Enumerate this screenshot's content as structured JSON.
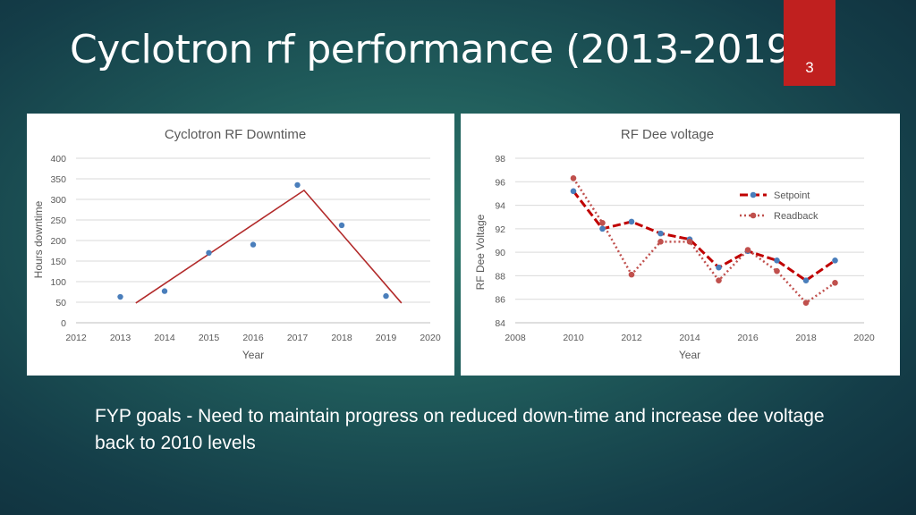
{
  "slide": {
    "title": "Cyclotron rf performance (2013-2019)",
    "page_number": "3",
    "footer_text": "FYP goals - Need to maintain progress on reduced down-time and increase dee voltage back to 2010 levels"
  },
  "colors": {
    "accent_tab": "#c0201f",
    "point_blue": "#4a7ebb",
    "trend_red": "#b22a2a",
    "setpoint": "#c00000",
    "readback": "#c0504d"
  },
  "chart_data": [
    {
      "type": "scatter",
      "title": "Cyclotron RF Downtime",
      "xlabel": "Year",
      "ylabel": "Hours downtime",
      "xlim": [
        2012,
        2020
      ],
      "ylim": [
        0,
        400
      ],
      "xticks": [
        2012,
        2013,
        2014,
        2015,
        2016,
        2017,
        2018,
        2019,
        2020
      ],
      "yticks": [
        0,
        50,
        100,
        150,
        200,
        250,
        300,
        350,
        400
      ],
      "grid": true,
      "legend": "none",
      "points": [
        {
          "x": 2013,
          "y": 63
        },
        {
          "x": 2014,
          "y": 77
        },
        {
          "x": 2015,
          "y": 170
        },
        {
          "x": 2016,
          "y": 190
        },
        {
          "x": 2017,
          "y": 335
        },
        {
          "x": 2018,
          "y": 237
        },
        {
          "x": 2019,
          "y": 65
        }
      ],
      "trend_line": [
        {
          "x": 2013.35,
          "y": 48
        },
        {
          "x": 2017.15,
          "y": 322
        },
        {
          "x": 2019.35,
          "y": 48
        }
      ]
    },
    {
      "type": "line",
      "title": "RF Dee voltage",
      "xlabel": "Year",
      "ylabel": "RF Dee Voltage",
      "xlim": [
        2008,
        2020
      ],
      "ylim": [
        84,
        98
      ],
      "xticks": [
        2008,
        2010,
        2012,
        2014,
        2016,
        2018,
        2020
      ],
      "yticks": [
        84,
        86,
        88,
        90,
        92,
        94,
        96,
        98
      ],
      "grid": true,
      "legend": "right",
      "x": [
        2010,
        2011,
        2012,
        2013,
        2014,
        2015,
        2016,
        2017,
        2018,
        2019
      ],
      "series": [
        {
          "name": "Setpoint",
          "values": [
            95.2,
            92.0,
            92.6,
            91.6,
            91.1,
            88.7,
            90.1,
            89.3,
            87.6,
            89.3
          ]
        },
        {
          "name": "Readback",
          "values": [
            96.3,
            92.5,
            88.1,
            90.9,
            90.9,
            87.6,
            90.2,
            88.4,
            85.7,
            87.4
          ]
        }
      ]
    }
  ]
}
